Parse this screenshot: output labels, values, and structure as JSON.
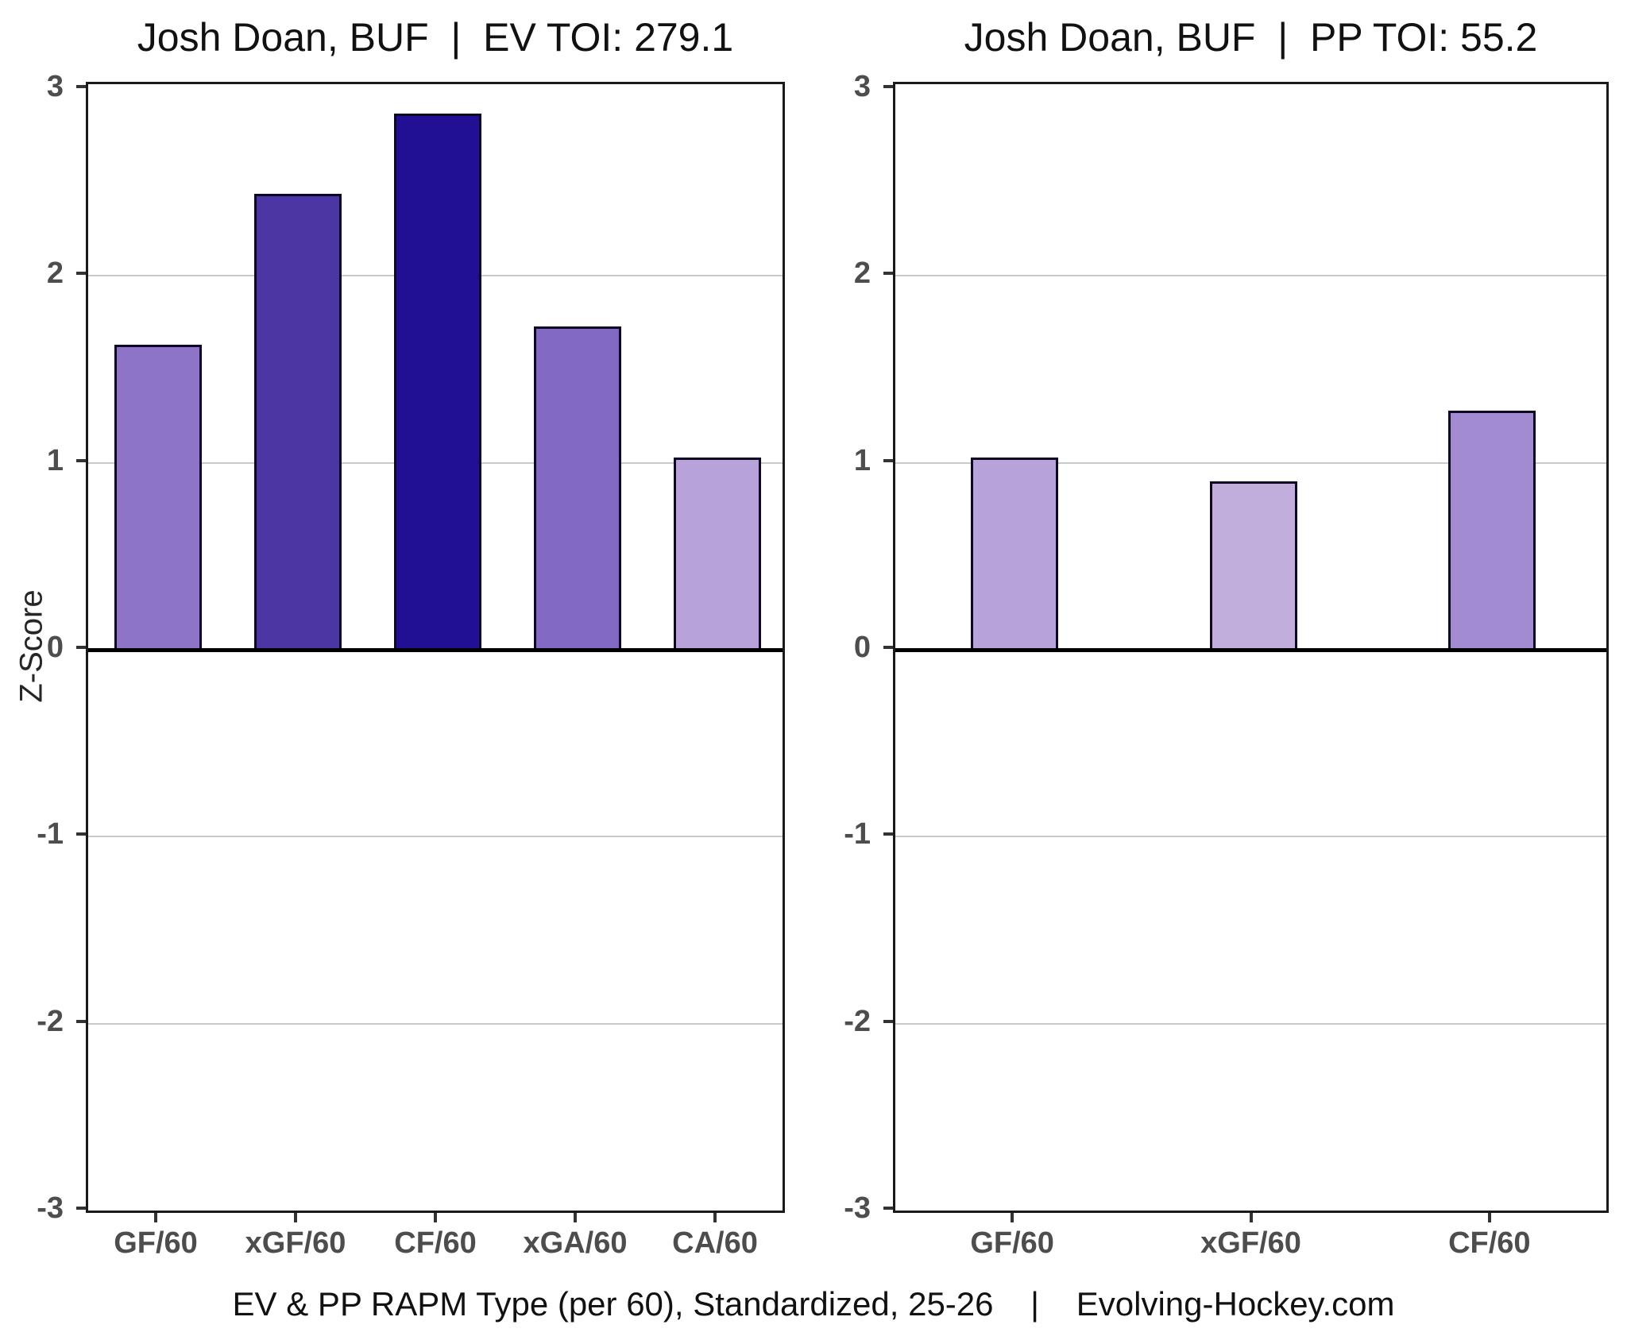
{
  "figure": {
    "background": "#ffffff",
    "footer": "EV & PP RAPM Type (per 60), Standardized, 25-26    |    Evolving-Hockey.com"
  },
  "chart_data": [
    {
      "type": "bar",
      "title": "Josh Doan, BUF  |  EV TOI: 279.1",
      "ylabel": "Z-Score",
      "categories": [
        "GF/60",
        "xGF/60",
        "CF/60",
        "xGA/60",
        "CA/60"
      ],
      "values": [
        1.63,
        2.44,
        2.87,
        1.73,
        1.03
      ],
      "bar_colors": [
        "#8d74c8",
        "#4b36a3",
        "#211094",
        "#8269c3",
        "#b7a3da"
      ],
      "ylim": [
        -3,
        3
      ],
      "yticks": [
        3,
        2,
        1,
        0,
        -1,
        -2,
        -3
      ],
      "gridlines_at": [
        2,
        1,
        -1,
        -2
      ],
      "zero_line": 0,
      "legend": "none",
      "grid": "major-horizontal"
    },
    {
      "type": "bar",
      "title": "Josh Doan, BUF  |  PP TOI: 55.2",
      "ylabel": "",
      "categories": [
        "GF/60",
        "xGF/60",
        "CF/60"
      ],
      "values": [
        1.03,
        0.9,
        1.28
      ],
      "bar_colors": [
        "#b7a3da",
        "#c1aedd",
        "#a28bd0"
      ],
      "ylim": [
        -3,
        3
      ],
      "yticks": [
        3,
        2,
        1,
        0,
        -1,
        -2,
        -3
      ],
      "gridlines_at": [
        2,
        1,
        -1,
        -2
      ],
      "zero_line": 0,
      "legend": "none",
      "grid": "major-horizontal"
    }
  ],
  "style": {
    "bar_border_color": "#0d0721",
    "gridline_color": "#c9c9c9",
    "zero_line_color": "#000000",
    "spine_color": "#1a1a1a",
    "tick_label_color": "#4d4d4d",
    "title_color": "#111111"
  }
}
